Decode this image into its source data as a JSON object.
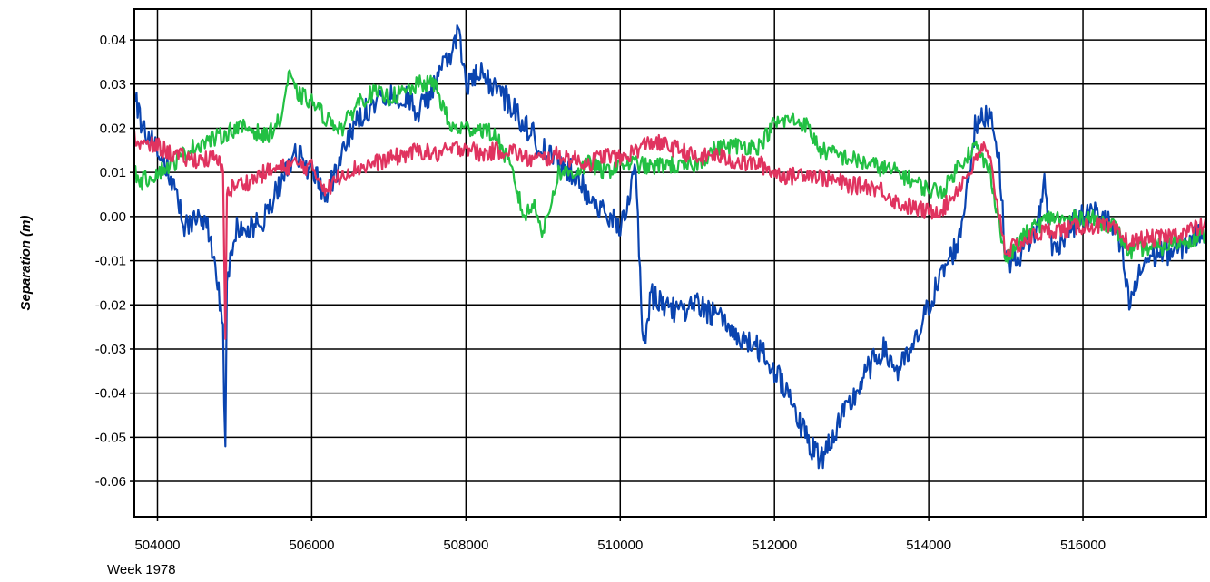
{
  "chart_data": {
    "type": "line",
    "title": "",
    "xlabel": "",
    "ylabel": "Separation (m)",
    "x_sublabel": "Week 1978",
    "xlim": [
      503700,
      517600
    ],
    "ylim": [
      -0.068,
      0.047
    ],
    "x_ticks": [
      504000,
      506000,
      508000,
      510000,
      512000,
      514000,
      516000
    ],
    "y_ticks": [
      0.04,
      0.03,
      0.02,
      0.01,
      0.0,
      -0.01,
      -0.02,
      -0.03,
      -0.04,
      -0.05,
      -0.06
    ],
    "y_tick_labels": [
      "0.04",
      "0.03",
      "0.02",
      "0.01",
      "0.00",
      "-0.01",
      "-0.02",
      "-0.03",
      "-0.04",
      "-0.05",
      "-0.06"
    ],
    "x_tick_labels": [
      "504000",
      "506000",
      "508000",
      "510000",
      "512000",
      "514000",
      "516000"
    ],
    "grid": true,
    "legend": "none",
    "series": [
      {
        "color": "#0a44b0",
        "x": [
          503700,
          503800,
          504000,
          504200,
          504350,
          504500,
          504650,
          504750,
          504850,
          504880,
          504900,
          505000,
          505200,
          505400,
          505600,
          505800,
          506000,
          506200,
          506400,
          506600,
          506800,
          507000,
          507200,
          507400,
          507600,
          507800,
          507900,
          508000,
          508200,
          508400,
          508600,
          508800,
          509000,
          509200,
          509400,
          509600,
          509800,
          510000,
          510200,
          510300,
          510400,
          510600,
          510800,
          511000,
          511200,
          511400,
          511600,
          511800,
          512000,
          512200,
          512400,
          512600,
          512800,
          513000,
          513200,
          513400,
          513600,
          513800,
          514000,
          514200,
          514400,
          514600,
          514800,
          514900,
          515000,
          515100,
          515200,
          515400,
          515500,
          515600,
          515800,
          516000,
          516200,
          516400,
          516500,
          516600,
          516800,
          517000,
          517200,
          517400,
          517600
        ],
        "y": [
          0.028,
          0.02,
          0.016,
          0.008,
          -0.002,
          0.0,
          -0.002,
          -0.01,
          -0.025,
          -0.055,
          -0.015,
          -0.003,
          -0.003,
          0.0,
          0.008,
          0.015,
          0.01,
          0.005,
          0.014,
          0.022,
          0.026,
          0.028,
          0.027,
          0.024,
          0.03,
          0.037,
          0.042,
          0.03,
          0.032,
          0.029,
          0.025,
          0.02,
          0.015,
          0.012,
          0.01,
          0.005,
          0.0,
          -0.002,
          0.01,
          -0.03,
          -0.018,
          -0.02,
          -0.022,
          -0.02,
          -0.022,
          -0.025,
          -0.028,
          -0.03,
          -0.035,
          -0.04,
          -0.05,
          -0.055,
          -0.048,
          -0.042,
          -0.035,
          -0.03,
          -0.035,
          -0.03,
          -0.02,
          -0.012,
          -0.005,
          0.02,
          0.024,
          0.015,
          -0.01,
          -0.01,
          -0.008,
          -0.003,
          0.008,
          -0.008,
          -0.003,
          0.0,
          0.001,
          -0.003,
          -0.008,
          -0.02,
          -0.01,
          -0.008,
          -0.008,
          -0.005,
          -0.003
        ]
      },
      {
        "color": "#22c043",
        "x": [
          503700,
          503800,
          504000,
          504200,
          504400,
          504600,
          504800,
          505000,
          505200,
          505400,
          505600,
          505700,
          505800,
          506000,
          506200,
          506400,
          506600,
          506800,
          507000,
          507200,
          507400,
          507600,
          507800,
          508000,
          508200,
          508400,
          508600,
          508750,
          508900,
          509000,
          509200,
          509400,
          509600,
          509800,
          510000,
          510200,
          510400,
          510600,
          510800,
          511000,
          511200,
          511400,
          511600,
          511800,
          512000,
          512200,
          512400,
          512600,
          512800,
          513000,
          513200,
          513400,
          513600,
          513800,
          514000,
          514200,
          514400,
          514600,
          514800,
          515000,
          515200,
          515400,
          515600,
          515800,
          516000,
          516200,
          516400,
          516600,
          516800,
          517000,
          517200,
          517400,
          517600
        ],
        "y": [
          0.01,
          0.008,
          0.01,
          0.012,
          0.015,
          0.017,
          0.018,
          0.02,
          0.02,
          0.018,
          0.022,
          0.032,
          0.028,
          0.026,
          0.022,
          0.02,
          0.026,
          0.028,
          0.027,
          0.028,
          0.03,
          0.03,
          0.02,
          0.02,
          0.02,
          0.018,
          0.01,
          0.0,
          0.003,
          -0.004,
          0.01,
          0.01,
          0.012,
          0.01,
          0.012,
          0.012,
          0.011,
          0.012,
          0.011,
          0.012,
          0.015,
          0.016,
          0.016,
          0.016,
          0.021,
          0.022,
          0.021,
          0.015,
          0.014,
          0.013,
          0.012,
          0.011,
          0.01,
          0.008,
          0.006,
          0.006,
          0.012,
          0.016,
          0.01,
          -0.01,
          -0.005,
          -0.002,
          0.0,
          -0.001,
          0.0,
          -0.001,
          -0.002,
          -0.008,
          -0.007,
          -0.007,
          -0.006,
          -0.005,
          -0.004
        ]
      },
      {
        "color": "#e0335f",
        "x": [
          503700,
          503800,
          504000,
          504200,
          504400,
          504600,
          504750,
          504800,
          504850,
          504880,
          504900,
          505000,
          505200,
          505400,
          505600,
          505800,
          506000,
          506200,
          506400,
          506600,
          506800,
          507000,
          507200,
          507400,
          507600,
          507800,
          508000,
          508200,
          508400,
          508600,
          508800,
          509000,
          509200,
          509400,
          509600,
          509800,
          510000,
          510200,
          510400,
          510600,
          510800,
          511000,
          511200,
          511400,
          511600,
          511800,
          512000,
          512200,
          512400,
          512600,
          512800,
          513000,
          513200,
          513400,
          513600,
          513800,
          514000,
          514200,
          514400,
          514600,
          514700,
          514800,
          515000,
          515200,
          515400,
          515600,
          515800,
          516000,
          516200,
          516400,
          516600,
          516800,
          517000,
          517200,
          517400,
          517600
        ],
        "y": [
          0.018,
          0.016,
          0.016,
          0.014,
          0.013,
          0.013,
          0.013,
          0.012,
          0.01,
          -0.026,
          0.005,
          0.007,
          0.008,
          0.01,
          0.011,
          0.012,
          0.011,
          0.006,
          0.01,
          0.011,
          0.012,
          0.013,
          0.014,
          0.015,
          0.014,
          0.015,
          0.016,
          0.014,
          0.015,
          0.015,
          0.013,
          0.013,
          0.014,
          0.013,
          0.012,
          0.014,
          0.013,
          0.015,
          0.017,
          0.016,
          0.015,
          0.013,
          0.014,
          0.013,
          0.012,
          0.012,
          0.01,
          0.009,
          0.01,
          0.009,
          0.008,
          0.007,
          0.007,
          0.006,
          0.003,
          0.002,
          0.001,
          0.002,
          0.007,
          0.012,
          0.016,
          0.012,
          -0.008,
          -0.006,
          -0.004,
          -0.003,
          -0.003,
          -0.002,
          -0.002,
          -0.003,
          -0.006,
          -0.005,
          -0.005,
          -0.004,
          -0.003,
          -0.002
        ]
      }
    ]
  }
}
